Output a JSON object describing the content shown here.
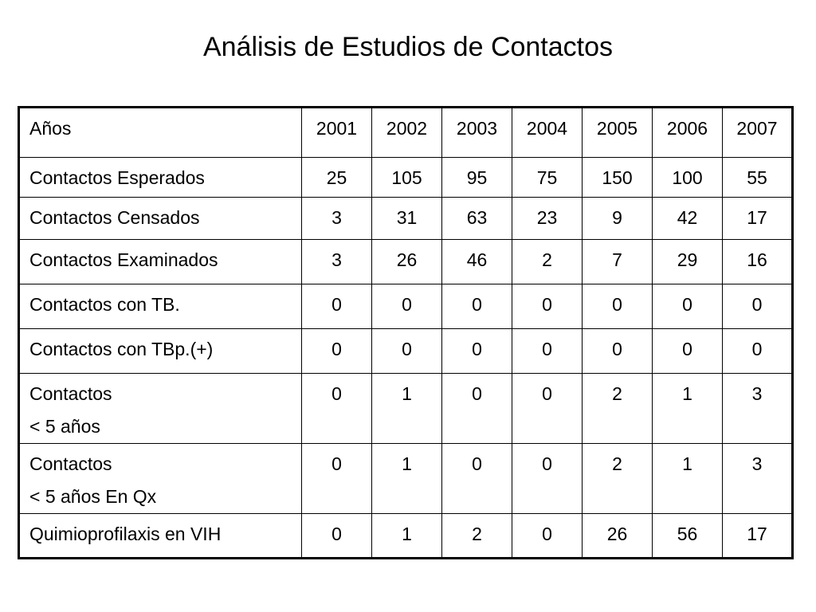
{
  "title": "Análisis de Estudios de Contactos",
  "table": {
    "header_label": "Años",
    "years": [
      "2001",
      "2002",
      "2003",
      "2004",
      "2005",
      "2006",
      "2007"
    ],
    "rows": [
      {
        "label": [
          "Contactos Esperados"
        ],
        "values": [
          "25",
          "105",
          "95",
          "75",
          "150",
          "100",
          "55"
        ]
      },
      {
        "label": [
          "Contactos Censados"
        ],
        "values": [
          "3",
          "31",
          "63",
          "23",
          "9",
          "42",
          "17"
        ]
      },
      {
        "label": [
          "Contactos Examinados"
        ],
        "values": [
          "3",
          "26",
          "46",
          "2",
          "7",
          "29",
          "16"
        ]
      },
      {
        "label": [
          "Contactos con TB."
        ],
        "values": [
          "0",
          "0",
          "0",
          "0",
          "0",
          "0",
          "0"
        ]
      },
      {
        "label": [
          "Contactos con TBp.(+)"
        ],
        "values": [
          "0",
          "0",
          "0",
          "0",
          "0",
          "0",
          "0"
        ]
      },
      {
        "label": [
          "Contactos",
          "< 5 años"
        ],
        "values": [
          "0",
          "1",
          "0",
          "0",
          "2",
          "1",
          "3"
        ]
      },
      {
        "label": [
          "Contactos",
          "< 5 años En Qx"
        ],
        "values": [
          "0",
          "1",
          "0",
          "0",
          "2",
          "1",
          "3"
        ]
      },
      {
        "label": [
          "Quimioprofilaxis en VIH"
        ],
        "values": [
          "0",
          "1",
          "2",
          "0",
          "26",
          "56",
          "17"
        ]
      }
    ]
  }
}
